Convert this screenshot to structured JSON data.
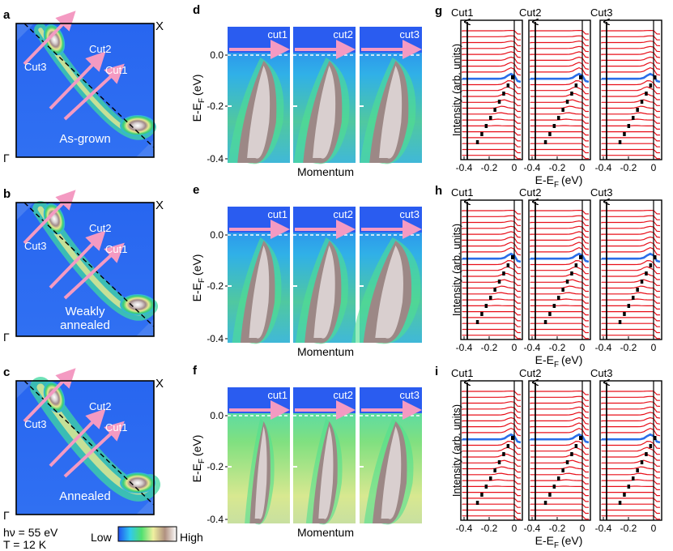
{
  "figure": {
    "fermi_maps": [
      {
        "label": "a",
        "state": "As-grown",
        "corner_x": "X",
        "corner_gamma": "Γ",
        "cuts": [
          "Cut1",
          "Cut2",
          "Cut3"
        ]
      },
      {
        "label": "b",
        "state": "Weakly annealed",
        "state_lines": [
          "Weakly",
          "annealed"
        ],
        "corner_x": "X",
        "corner_gamma": "Γ",
        "cuts": [
          "Cut1",
          "Cut2",
          "Cut3"
        ]
      },
      {
        "label": "c",
        "state": "Annealed",
        "corner_x": "X",
        "corner_gamma": "Γ",
        "cuts": [
          "Cut1",
          "Cut2",
          "Cut3"
        ]
      }
    ],
    "conditions": {
      "photon_energy": "hν = 55 eV",
      "temperature": "T = 12 K"
    },
    "colorbar": {
      "low": "Low",
      "high": "High",
      "colors": [
        "#2050f0",
        "#30c8f0",
        "#50e070",
        "#f0f0a0",
        "#b09080",
        "#ffffff"
      ]
    },
    "spectra_panels": [
      {
        "label": "d",
        "cuts": [
          "cut1",
          "cut2",
          "cut3"
        ]
      },
      {
        "label": "e",
        "cuts": [
          "cut1",
          "cut2",
          "cut3"
        ]
      },
      {
        "label": "f",
        "cuts": [
          "cut1",
          "cut2",
          "cut3"
        ]
      }
    ],
    "spectra_axis": {
      "ylabel": "E-EF (eV)",
      "ylabel_main": "E-E",
      "ylabel_sub": "F",
      "ylabel_unit": "(eV)",
      "xlabel": "Momentum",
      "yticks": [
        "0.0",
        "-0.2",
        "-0.4"
      ]
    },
    "edc_panels": [
      {
        "label": "g",
        "cuts": [
          "Cut1",
          "Cut2",
          "Cut3"
        ]
      },
      {
        "label": "h",
        "cuts": [
          "Cut1",
          "Cut2",
          "Cut3"
        ]
      },
      {
        "label": "i",
        "cuts": [
          "Cut1",
          "Cut2",
          "Cut3"
        ]
      }
    ],
    "edc_axis": {
      "ylabel": "Intensity (arb. units)",
      "xlabel": "E-EF (eV)",
      "xlabel_main": "E-E",
      "xlabel_sub": "F",
      "xlabel_unit": "(eV)",
      "xticks": [
        "-0.4",
        "-0.2",
        "0"
      ]
    },
    "colors": {
      "arrow": "#f49ac2",
      "edc_line": "#e8101a",
      "edc_highlight": "#2a6ee8",
      "map_bg": "#2e6cf0"
    }
  }
}
